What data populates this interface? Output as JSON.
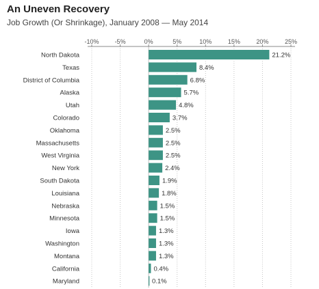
{
  "chart_data": {
    "type": "bar",
    "orientation": "horizontal",
    "title": "An Uneven Recovery",
    "subtitle": "Job Growth (Or Shrinkage), January 2008 — May 2014",
    "xlim": [
      -10,
      25
    ],
    "ticks": [
      -10,
      -5,
      0,
      5,
      10,
      15,
      20,
      25
    ],
    "tick_labels": [
      "-10%",
      "-5%",
      "0%",
      "5%",
      "10%",
      "15%",
      "20%",
      "25%"
    ],
    "grid": true,
    "bar_color": "#3d9485",
    "categories": [
      "North Dakota",
      "Texas",
      "District of Columbia",
      "Alaska",
      "Utah",
      "Colorado",
      "Oklahoma",
      "Massachusetts",
      "West Virginia",
      "New York",
      "South Dakota",
      "Louisiana",
      "Nebraska",
      "Minnesota",
      "Iowa",
      "Washington",
      "Montana",
      "California",
      "Maryland"
    ],
    "values": [
      21.2,
      8.4,
      6.8,
      5.7,
      4.8,
      3.7,
      2.5,
      2.5,
      2.5,
      2.4,
      1.9,
      1.8,
      1.5,
      1.5,
      1.3,
      1.3,
      1.3,
      0.4,
      0.1
    ],
    "value_labels": [
      "21.2%",
      "8.4%",
      "6.8%",
      "5.7%",
      "4.8%",
      "3.7%",
      "2.5%",
      "2.5%",
      "2.5%",
      "2.4%",
      "1.9%",
      "1.8%",
      "1.5%",
      "1.5%",
      "1.3%",
      "1.3%",
      "1.3%",
      "0.4%",
      "0.1%"
    ]
  }
}
